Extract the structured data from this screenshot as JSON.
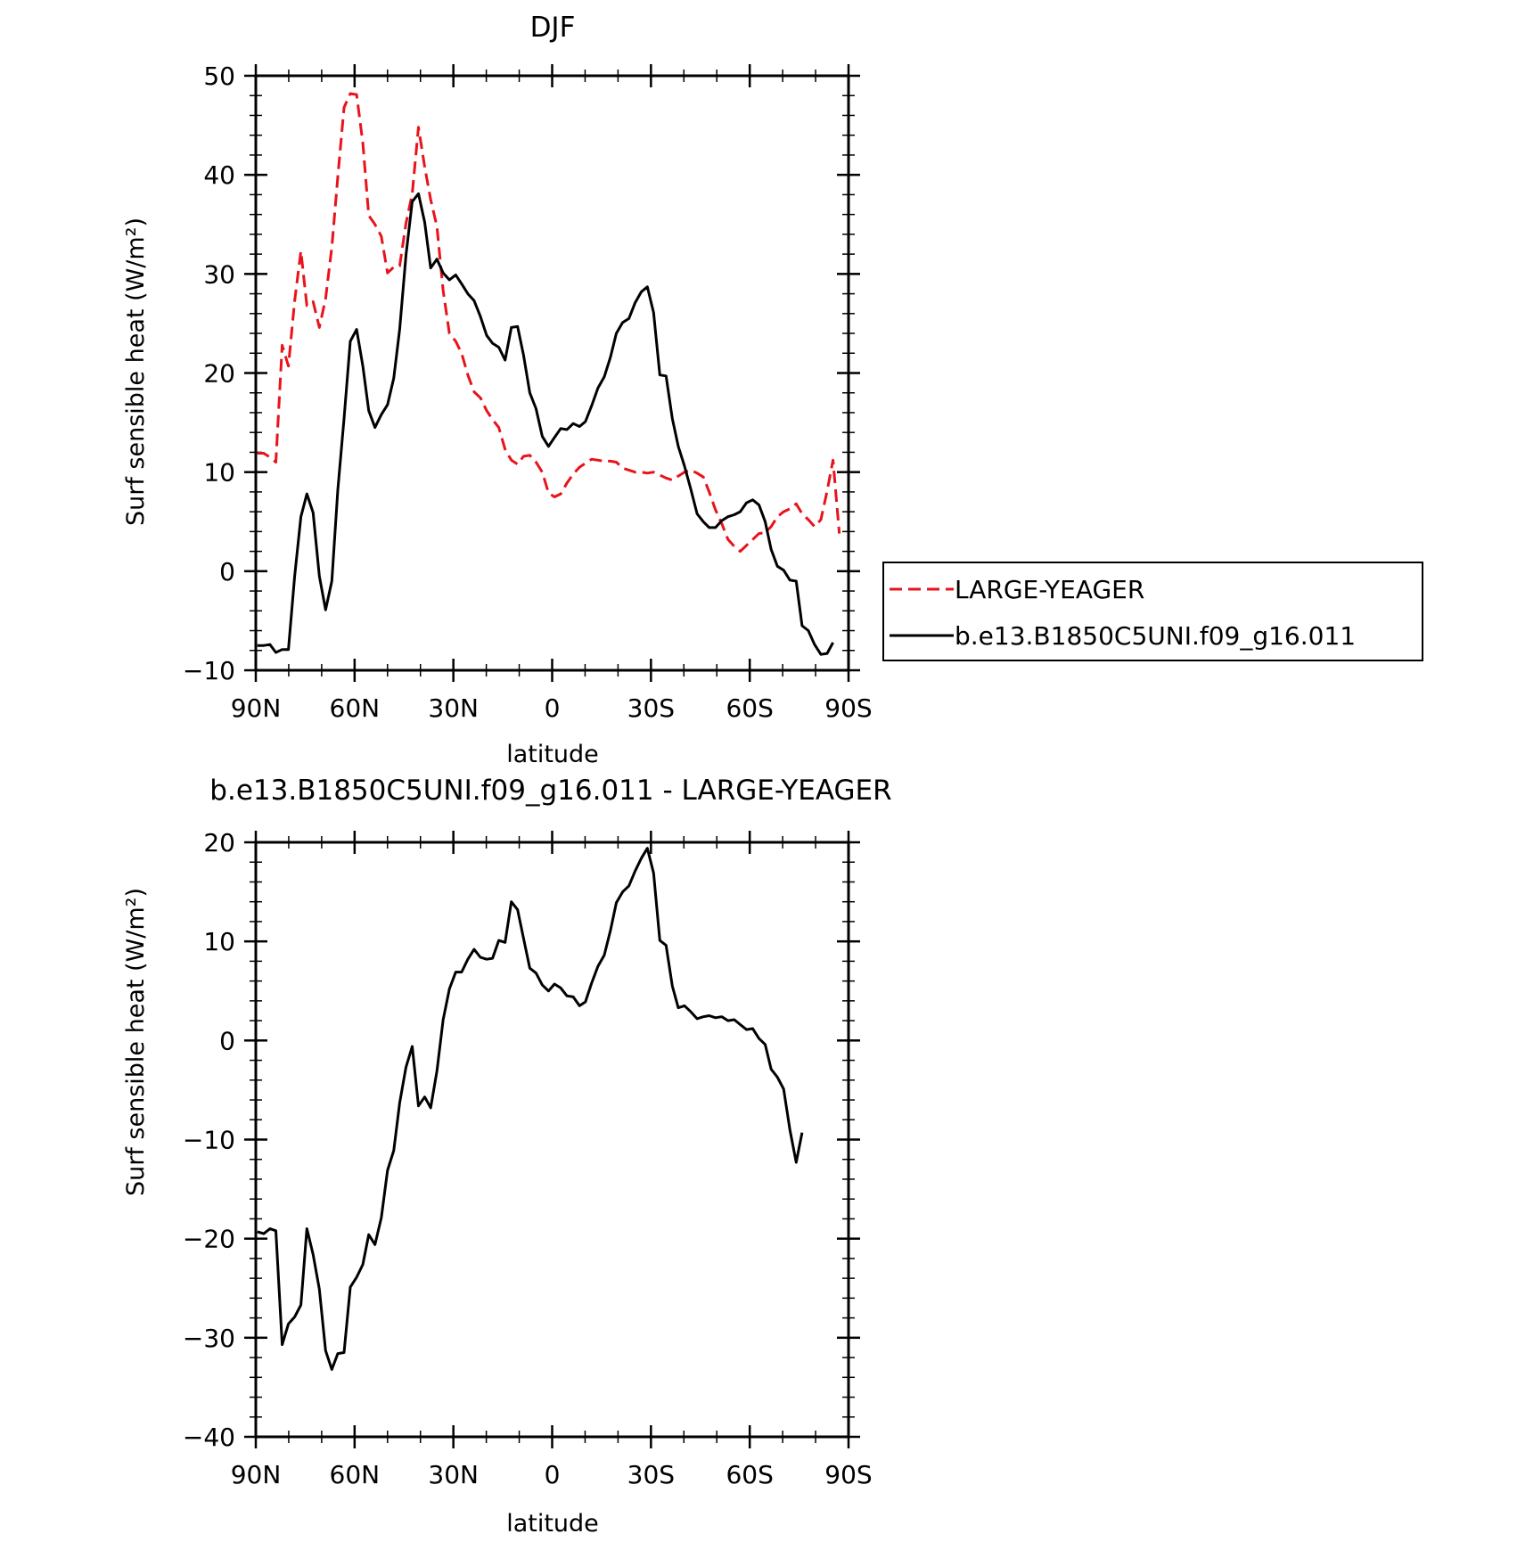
{
  "chart_data": [
    {
      "type": "line",
      "title": "DJF",
      "xlabel": "latitude",
      "ylabel": "Surf sensible heat (W/m²)",
      "xlim": [
        90,
        -90
      ],
      "ylim": [
        -10,
        50
      ],
      "yticks": [
        -10,
        0,
        10,
        20,
        30,
        40,
        50
      ],
      "xticks": [
        90,
        60,
        30,
        0,
        -30,
        -60,
        -90
      ],
      "xtick_labels": [
        "90N",
        "60N",
        "30N",
        "0",
        "30S",
        "60S",
        "90S"
      ],
      "grid": false,
      "legend_position": "right",
      "x": [
        89.5,
        87.6,
        85.7,
        83.9,
        82.0,
        80.1,
        78.2,
        76.3,
        74.5,
        72.6,
        70.7,
        68.8,
        66.9,
        65.1,
        63.2,
        61.3,
        59.4,
        57.5,
        55.7,
        53.8,
        51.9,
        50.0,
        48.1,
        46.3,
        44.4,
        42.5,
        40.6,
        38.7,
        36.9,
        35.0,
        33.1,
        31.2,
        29.3,
        27.5,
        25.6,
        23.7,
        21.8,
        19.9,
        18.1,
        16.2,
        14.3,
        12.4,
        10.5,
        8.7,
        6.8,
        4.9,
        3.0,
        1.1,
        -0.7,
        -2.6,
        -4.5,
        -6.4,
        -8.3,
        -10.1,
        -12.0,
        -13.9,
        -15.8,
        -17.7,
        -19.5,
        -21.4,
        -23.3,
        -25.2,
        -27.1,
        -28.9,
        -30.8,
        -32.7,
        -34.6,
        -36.5,
        -38.3,
        -40.2,
        -42.1,
        -44.0,
        -45.9,
        -47.7,
        -49.6,
        -51.5,
        -53.4,
        -55.3,
        -57.1,
        -59.0,
        -60.9,
        -62.8,
        -64.7,
        -66.5,
        -68.4,
        -70.3,
        -72.2,
        -74.1,
        -75.9,
        -77.8,
        -79.7,
        -81.6,
        -83.5,
        -85.3,
        -87.2,
        -89.1
      ],
      "series": [
        {
          "name": "LARGE-YEAGER",
          "color": "#e8131b",
          "dash": "dashed",
          "values": [
            11.9,
            11.9,
            11.5,
            11.0,
            22.8,
            20.7,
            27.3,
            32.3,
            26.8,
            27.2,
            24.6,
            27.5,
            32.7,
            39.8,
            46.8,
            48.2,
            48.1,
            43.2,
            35.9,
            35.0,
            33.8,
            30.1,
            30.7,
            30.8,
            35.1,
            38.1,
            44.8,
            40.8,
            37.5,
            34.8,
            28.3,
            24.0,
            23.2,
            22.0,
            19.8,
            18.1,
            17.5,
            16.2,
            15.3,
            14.5,
            12.3,
            11.2,
            10.8,
            11.6,
            11.7,
            11.0,
            10.0,
            7.9,
            7.5,
            7.8,
            8.9,
            9.8,
            10.5,
            10.9,
            11.3,
            11.2,
            11.1,
            11.1,
            11.0,
            10.4,
            10.2,
            10.0,
            10.0,
            9.9,
            10.0,
            9.7,
            9.4,
            9.2,
            9.6,
            10.0,
            10.2,
            9.9,
            9.5,
            8.0,
            6.2,
            4.8,
            3.2,
            2.5,
            2.0,
            2.6,
            3.2,
            3.8,
            3.9,
            4.5,
            5.5,
            6.0,
            6.3,
            6.8,
            5.8,
            5.2,
            4.5,
            5.2,
            8.1,
            11.2,
            3.8,
            null
          ],
          "null_note": "ends near 80S"
        },
        {
          "name": "b.e13.B1850C5UNI.f09_g16.011",
          "color": "#000000",
          "dash": "solid",
          "values": [
            -7.5,
            -7.5,
            -7.4,
            -8.2,
            -7.9,
            -7.9,
            -0.5,
            5.5,
            7.8,
            5.9,
            -0.5,
            -3.9,
            -1.0,
            8.2,
            15.4,
            23.2,
            24.4,
            20.7,
            16.2,
            14.5,
            15.8,
            16.8,
            19.5,
            24.4,
            31.9,
            37.3,
            38.1,
            35.2,
            30.6,
            31.5,
            30.1,
            29.4,
            29.9,
            29.0,
            28.0,
            27.3,
            25.7,
            23.8,
            23.0,
            22.6,
            21.3,
            24.6,
            24.7,
            21.8,
            18.0,
            16.4,
            13.6,
            12.6,
            13.5,
            14.4,
            14.3,
            14.9,
            14.6,
            15.1,
            16.7,
            18.5,
            19.6,
            21.6,
            24.0,
            25.1,
            25.5,
            27.1,
            28.2,
            28.7,
            26.1,
            19.8,
            19.7,
            15.4,
            12.6,
            10.6,
            8.3,
            5.8,
            5.0,
            4.4,
            4.4,
            5.1,
            5.5,
            5.7,
            6.0,
            6.9,
            7.2,
            6.7,
            5.0,
            2.2,
            0.5,
            0.1,
            -0.9,
            -1.0,
            -5.5,
            -6.0,
            -7.4,
            -8.4,
            -8.3,
            -7.2,
            null,
            null
          ]
        }
      ]
    },
    {
      "type": "line",
      "title": "b.e13.B1850C5UNI.f09_g16.011 - LARGE-YEAGER",
      "xlabel": "latitude",
      "ylabel": "Surf sensible heat (W/m²)",
      "xlim": [
        90,
        -90
      ],
      "ylim": [
        -40,
        20
      ],
      "yticks": [
        -40,
        -30,
        -20,
        -10,
        0,
        10,
        20
      ],
      "xticks": [
        90,
        60,
        30,
        0,
        -30,
        -60,
        -90
      ],
      "xtick_labels": [
        "90N",
        "60N",
        "30N",
        "0",
        "30S",
        "60S",
        "90S"
      ],
      "grid": false,
      "x": [
        89.5,
        87.6,
        85.7,
        83.9,
        82.0,
        80.1,
        78.2,
        76.3,
        74.5,
        72.6,
        70.7,
        68.8,
        66.9,
        65.1,
        63.2,
        61.3,
        59.4,
        57.5,
        55.7,
        53.8,
        51.9,
        50.0,
        48.1,
        46.3,
        44.4,
        42.5,
        40.6,
        38.7,
        36.9,
        35.0,
        33.1,
        31.2,
        29.3,
        27.5,
        25.6,
        23.7,
        21.8,
        19.9,
        18.1,
        16.2,
        14.3,
        12.4,
        10.5,
        8.7,
        6.8,
        4.9,
        3.0,
        1.1,
        -0.7,
        -2.6,
        -4.5,
        -6.4,
        -8.3,
        -10.1,
        -12.0,
        -13.9,
        -15.8,
        -17.7,
        -19.5,
        -21.4,
        -23.3,
        -25.2,
        -27.1,
        -28.9,
        -30.8,
        -32.7,
        -34.6,
        -36.5,
        -38.3,
        -40.2,
        -42.1,
        -44.0,
        -45.9,
        -47.7,
        -49.6,
        -51.5,
        -53.4,
        -55.3,
        -57.1,
        -59.0,
        -60.9,
        -62.8,
        -64.7,
        -66.5,
        -68.4,
        -70.3,
        -72.2,
        -74.1,
        -75.9,
        -77.8,
        -79.7
      ],
      "series": [
        {
          "color": "#000000",
          "dash": "solid",
          "values": [
            -19.3,
            -19.5,
            -19.0,
            -19.2,
            -30.7,
            -28.6,
            -27.9,
            -26.7,
            -19.0,
            -21.6,
            -25.1,
            -31.3,
            -33.2,
            -31.6,
            -31.5,
            -24.9,
            -23.9,
            -22.6,
            -19.6,
            -20.6,
            -17.9,
            -13.1,
            -11.1,
            -6.3,
            -2.7,
            -0.6,
            -6.6,
            -5.7,
            -6.8,
            -3.1,
            2.1,
            5.2,
            6.9,
            6.9,
            8.2,
            9.2,
            8.4,
            8.2,
            8.3,
            10.1,
            9.9,
            14.0,
            13.2,
            10.3,
            7.3,
            6.8,
            5.6,
            5.0,
            5.7,
            5.3,
            4.5,
            4.4,
            3.5,
            3.9,
            5.8,
            7.5,
            8.6,
            11.1,
            13.9,
            15.0,
            15.6,
            17.1,
            18.4,
            19.4,
            16.9,
            10.1,
            9.6,
            5.5,
            3.3,
            3.5,
            2.9,
            2.2,
            2.4,
            2.5,
            2.3,
            2.4,
            2.0,
            2.1,
            1.6,
            1.1,
            1.2,
            0.2,
            -0.4,
            -2.9,
            -3.7,
            -4.9,
            -9.0,
            -12.3,
            -9.3,
            null,
            null
          ]
        }
      ]
    }
  ]
}
